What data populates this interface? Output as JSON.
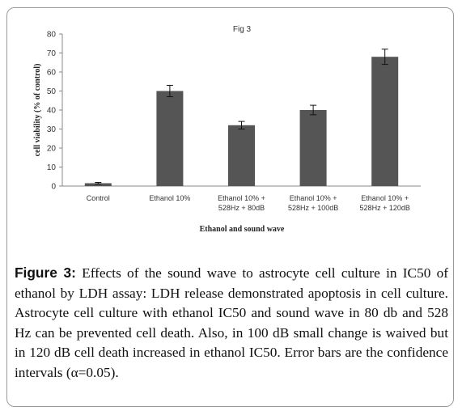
{
  "figure": {
    "caption_label": "Figure 3:",
    "caption_text": " Effects of the sound wave to astrocyte cell culture in IC50 of ethanol by LDH assay: LDH release demonstrated apoptosis in cell culture. Astrocyte cell culture with ethanol IC50 and sound wave in 80 db and 528 Hz can be prevented cell death. Also, in 100 dB small change is waived but in 120 dB cell death increased in ethanol IC50. Error bars are the confidence intervals (α=0.05)."
  },
  "chart_data": {
    "type": "bar",
    "title": "Fig 3",
    "xlabel": "Ethanol and sound wave",
    "ylabel": "cell viability (% of control)",
    "ylim": [
      0,
      80
    ],
    "yticks": [
      "0",
      "10",
      "20",
      "30",
      "40",
      "50",
      "60",
      "70",
      "80"
    ],
    "grid": false,
    "bar_color": "#555555",
    "categories": [
      [
        "Control"
      ],
      [
        "Ethanol 10%"
      ],
      [
        "Ethanol 10% +",
        "528Hz + 80dB"
      ],
      [
        "Ethanol 10% +",
        "528Hz + 100dB"
      ],
      [
        "Ethanol 10% +",
        "528Hz + 120dB"
      ]
    ],
    "values": [
      1.5,
      50,
      32,
      40,
      68
    ],
    "error": [
      0.4,
      3,
      2,
      2.5,
      4
    ]
  }
}
